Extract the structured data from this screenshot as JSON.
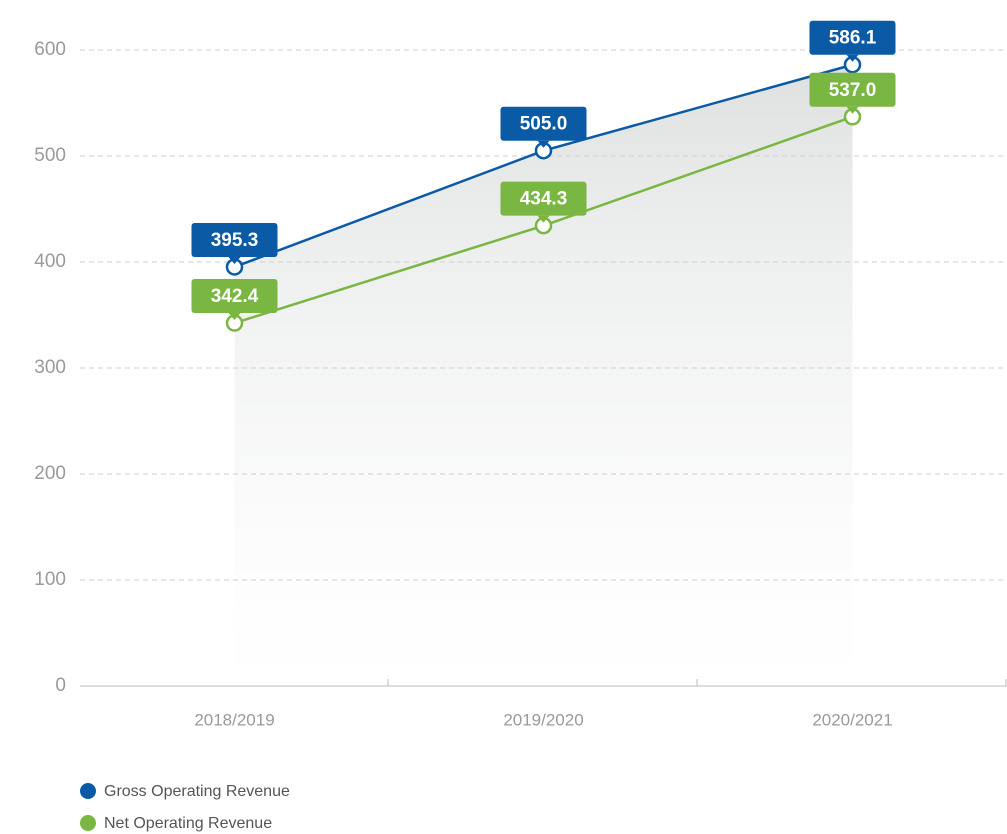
{
  "chart_data": {
    "type": "line",
    "categories": [
      "2018/2019",
      "2019/2020",
      "2020/2021"
    ],
    "series": [
      {
        "name": "Gross Operating Revenue",
        "color": "#0a5aa5",
        "values": [
          395.3,
          505,
          586.1
        ],
        "value_labels": [
          "395.3",
          "505.0",
          "586.1"
        ]
      },
      {
        "name": "Net Operating Revenue",
        "color": "#7ab642",
        "values": [
          342.4,
          434.3,
          537
        ],
        "value_labels": [
          "342.4",
          "434.3",
          "537.0"
        ]
      }
    ],
    "ylim": [
      0,
      600
    ],
    "yticks": [
      0,
      100,
      200,
      300,
      400,
      500,
      600
    ],
    "grid": true,
    "legend": "bottom-left"
  }
}
